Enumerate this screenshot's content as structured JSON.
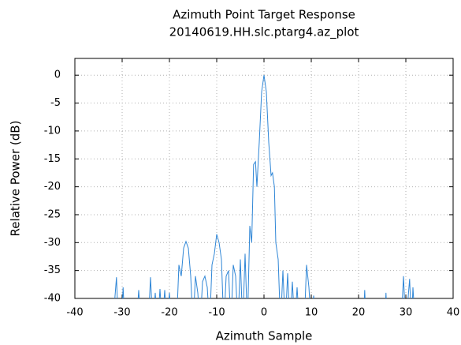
{
  "chart_data": {
    "type": "line",
    "title": "Azimuth Point Target Response",
    "subtitle": "20140619.HH.slc.ptarg4.az_plot",
    "xlabel": "Azimuth Sample",
    "ylabel": "Relative Power (dB)",
    "x": [
      -32,
      -31.2,
      -30.8,
      -30.2,
      -29.8,
      -29.4,
      -27,
      -26.5,
      -26,
      -24.5,
      -24,
      -23.5,
      -23,
      -22.5,
      -22,
      -21.5,
      -21,
      -20.5,
      -20,
      -19.5,
      -18.5,
      -18,
      -17.5,
      -17,
      -16.5,
      -16,
      -15.5,
      -15,
      -14.5,
      -14,
      -13.5,
      -13,
      -12.5,
      -12,
      -11.5,
      -11,
      -10.5,
      -10,
      -9.5,
      -9,
      -8.5,
      -8,
      -7.5,
      -7,
      -6.5,
      -6,
      -5.5,
      -5,
      -4.5,
      -4,
      -3.5,
      -3,
      -2.6,
      -2.2,
      -1.8,
      -1.5,
      -1,
      -0.5,
      0,
      0.5,
      1,
      1.5,
      1.8,
      2.2,
      2.5,
      3,
      3.5,
      4,
      4.5,
      5,
      5.5,
      6,
      6.5,
      7,
      7.5,
      8.5,
      9,
      9.5,
      10,
      10.5,
      11,
      21,
      21.3,
      21.6,
      25.5,
      25.8,
      26.1,
      29,
      29.5,
      30,
      30.8,
      31.2,
      31.5,
      32
    ],
    "values": [
      -45,
      -36.2,
      -45,
      -45,
      -38,
      -45,
      -45,
      -38.5,
      -45,
      -45,
      -36.2,
      -45,
      -39,
      -45,
      -38.3,
      -45,
      -38.5,
      -45,
      -39,
      -45,
      -45,
      -34,
      -36,
      -31,
      -29.8,
      -31,
      -36,
      -45,
      -36,
      -39,
      -45,
      -37,
      -36,
      -38,
      -45,
      -34,
      -32,
      -28.5,
      -30,
      -33,
      -45,
      -36,
      -35,
      -45,
      -34,
      -36,
      -45,
      -33,
      -45,
      -32,
      -45,
      -27,
      -30,
      -16,
      -15.5,
      -20,
      -12,
      -3,
      0,
      -3,
      -12,
      -18,
      -17.5,
      -20,
      -30,
      -33,
      -45,
      -35,
      -45,
      -35.5,
      -45,
      -37,
      -45,
      -38,
      -45,
      -45,
      -34,
      -38,
      -45,
      -39.5,
      -45,
      -45,
      -38.5,
      -45,
      -45,
      -39,
      -45,
      -45,
      -36,
      -45,
      -36.5,
      -45,
      -38,
      -45
    ],
    "color": "#2f86d6",
    "xlim": [
      -40,
      40
    ],
    "xticks": [
      -40,
      -30,
      -20,
      -10,
      0,
      10,
      20,
      30,
      40
    ],
    "ylim": [
      -40,
      3
    ],
    "yticks": [
      0,
      -5,
      -10,
      -15,
      -20,
      -25,
      -30,
      -35,
      -40
    ],
    "grid": true
  }
}
